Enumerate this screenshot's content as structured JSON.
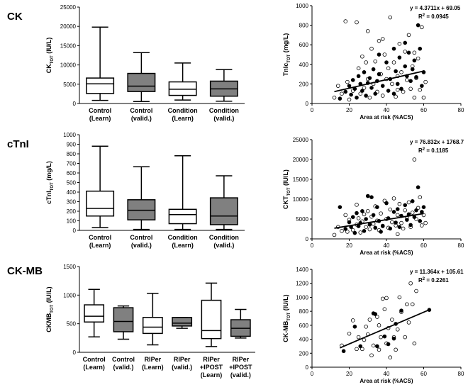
{
  "row_labels": [
    "CK",
    "cTnI",
    "CK-MB"
  ],
  "chart_data": [
    {
      "type": "box",
      "ylabel": "CK",
      "ylabel_sub": "TOT",
      "ylabel_unit": " (IU/L)",
      "ylim": [
        0,
        25000
      ],
      "yticks": [
        0,
        5000,
        10000,
        15000,
        20000,
        25000
      ],
      "categories": [
        [
          "Control",
          "(Learn)"
        ],
        [
          "Control",
          "(valid.)"
        ],
        [
          "Condition",
          "(Learn)"
        ],
        [
          "Condition",
          "(valid.)"
        ]
      ],
      "fills": [
        "#ffffff",
        "#808080",
        "#ffffff",
        "#808080"
      ],
      "boxes": [
        {
          "min": 800,
          "q1": 2600,
          "median": 5100,
          "q3": 6600,
          "max": 19800
        },
        {
          "min": 500,
          "q1": 3100,
          "median": 4500,
          "q3": 7800,
          "max": 13200
        },
        {
          "min": 900,
          "q1": 2100,
          "median": 3700,
          "q3": 5600,
          "max": 10500
        },
        {
          "min": 600,
          "q1": 1900,
          "median": 3800,
          "q3": 5800,
          "max": 8800
        }
      ]
    },
    {
      "type": "scatter",
      "ylabel": "TnIc",
      "ylabel_sub": "TOT",
      "ylabel_unit": " (mg/L)",
      "xlabel": "Area at risk (%ACS)",
      "xlim": [
        0,
        80
      ],
      "xticks": [
        0,
        20,
        40,
        60,
        80
      ],
      "ylim": [
        0,
        1000
      ],
      "yticks": [
        0,
        200,
        400,
        600,
        800,
        1000
      ],
      "equation": "y = 4.3711x + 69.05",
      "r2_label": "R",
      "r2_value": " = 0.0945",
      "fit": {
        "slope": 4.3711,
        "intercept": 69.05,
        "x_range": [
          12,
          60
        ]
      },
      "filled": [
        [
          15,
          50
        ],
        [
          18,
          120
        ],
        [
          20,
          180
        ],
        [
          21,
          90
        ],
        [
          22,
          240
        ],
        [
          23,
          150
        ],
        [
          24,
          60
        ],
        [
          25,
          280
        ],
        [
          26,
          200
        ],
        [
          27,
          130
        ],
        [
          28,
          320
        ],
        [
          29,
          80
        ],
        [
          30,
          210
        ],
        [
          31,
          260
        ],
        [
          32,
          160
        ],
        [
          33,
          350
        ],
        [
          34,
          100
        ],
        [
          35,
          230
        ],
        [
          36,
          300
        ],
        [
          38,
          180
        ],
        [
          40,
          420
        ],
        [
          41,
          130
        ],
        [
          42,
          250
        ],
        [
          44,
          560
        ],
        [
          45,
          330
        ],
        [
          46,
          200
        ],
        [
          47,
          470
        ],
        [
          48,
          150
        ],
        [
          50,
          380
        ],
        [
          51,
          280
        ],
        [
          52,
          520
        ],
        [
          53,
          230
        ],
        [
          54,
          350
        ],
        [
          55,
          440
        ],
        [
          56,
          270
        ],
        [
          57,
          800
        ],
        [
          58,
          560
        ],
        [
          59,
          180
        ],
        [
          60,
          320
        ],
        [
          36,
          500
        ],
        [
          44,
          100
        ],
        [
          50,
          620
        ]
      ],
      "open": [
        [
          12,
          60
        ],
        [
          14,
          180
        ],
        [
          16,
          100
        ],
        [
          18,
          840
        ],
        [
          19,
          220
        ],
        [
          20,
          40
        ],
        [
          22,
          130
        ],
        [
          24,
          830
        ],
        [
          25,
          360
        ],
        [
          26,
          100
        ],
        [
          27,
          480
        ],
        [
          28,
          160
        ],
        [
          29,
          420
        ],
        [
          30,
          250
        ],
        [
          31,
          60
        ],
        [
          32,
          560
        ],
        [
          33,
          200
        ],
        [
          34,
          430
        ],
        [
          35,
          120
        ],
        [
          36,
          640
        ],
        [
          37,
          300
        ],
        [
          38,
          80
        ],
        [
          39,
          500
        ],
        [
          40,
          250
        ],
        [
          41,
          360
        ],
        [
          42,
          880
        ],
        [
          43,
          200
        ],
        [
          44,
          420
        ],
        [
          45,
          70
        ],
        [
          46,
          280
        ],
        [
          47,
          610
        ],
        [
          48,
          320
        ],
        [
          49,
          120
        ],
        [
          50,
          530
        ],
        [
          51,
          240
        ],
        [
          52,
          700
        ],
        [
          53,
          150
        ],
        [
          54,
          380
        ],
        [
          55,
          60
        ],
        [
          56,
          260
        ],
        [
          57,
          460
        ],
        [
          58,
          140
        ],
        [
          59,
          780
        ],
        [
          60,
          60
        ],
        [
          61,
          220
        ],
        [
          30,
          740
        ],
        [
          38,
          660
        ],
        [
          46,
          140
        ],
        [
          55,
          520
        ]
      ]
    },
    {
      "type": "box",
      "ylabel": "cTnI",
      "ylabel_sub": "TOT",
      "ylabel_unit": " (mg/L)",
      "ylim": [
        0,
        1000
      ],
      "yticks": [
        0,
        100,
        200,
        300,
        400,
        500,
        600,
        700,
        800,
        900,
        1000
      ],
      "categories": [
        [
          "Control",
          "(Learn)"
        ],
        [
          "Control",
          "(valid.)"
        ],
        [
          "Condition",
          "(Learn)"
        ],
        [
          "Condition",
          "(valid.)"
        ]
      ],
      "fills": [
        "#ffffff",
        "#808080",
        "#ffffff",
        "#808080"
      ],
      "boxes": [
        {
          "min": 30,
          "q1": 150,
          "median": 230,
          "q3": 410,
          "max": 880
        },
        {
          "min": 10,
          "q1": 110,
          "median": 210,
          "q3": 320,
          "max": 665
        },
        {
          "min": 10,
          "q1": 70,
          "median": 165,
          "q3": 220,
          "max": 780
        },
        {
          "min": 10,
          "q1": 60,
          "median": 150,
          "q3": 340,
          "max": 570
        }
      ]
    },
    {
      "type": "scatter",
      "ylabel": "CKT",
      "ylabel_sub": "TOT",
      "ylabel_unit": " (IU/L)",
      "xlabel": "Area at risk (%ACS)",
      "xlim": [
        0,
        80
      ],
      "xticks": [
        0,
        20,
        40,
        60,
        80
      ],
      "ylim": [
        0,
        25000
      ],
      "yticks": [
        0,
        5000,
        10000,
        15000,
        20000,
        25000
      ],
      "equation": "y = 76.832x + 1768.7",
      "r2_label": "R",
      "r2_value": " = 0.1185",
      "fit": {
        "slope": 76.832,
        "intercept": 1768.7,
        "x_range": [
          12,
          60
        ]
      },
      "filled": [
        [
          15,
          8000
        ],
        [
          18,
          2500
        ],
        [
          20,
          4200
        ],
        [
          21,
          3000
        ],
        [
          22,
          5500
        ],
        [
          23,
          1500
        ],
        [
          24,
          6500
        ],
        [
          25,
          3200
        ],
        [
          26,
          4000
        ],
        [
          27,
          7000
        ],
        [
          28,
          2000
        ],
        [
          29,
          5000
        ],
        [
          30,
          10800
        ],
        [
          31,
          3600
        ],
        [
          32,
          10500
        ],
        [
          33,
          6000
        ],
        [
          34,
          2800
        ],
        [
          35,
          8000
        ],
        [
          36,
          4500
        ],
        [
          38,
          3300
        ],
        [
          40,
          9000
        ],
        [
          41,
          5200
        ],
        [
          42,
          2600
        ],
        [
          44,
          6800
        ],
        [
          45,
          4100
        ],
        [
          46,
          7500
        ],
        [
          47,
          3000
        ],
        [
          48,
          5800
        ],
        [
          50,
          8500
        ],
        [
          51,
          4800
        ],
        [
          52,
          6200
        ],
        [
          53,
          3500
        ],
        [
          54,
          9500
        ],
        [
          55,
          5500
        ],
        [
          56,
          7200
        ],
        [
          57,
          13000
        ],
        [
          58,
          4500
        ],
        [
          59,
          6800
        ],
        [
          60,
          8000
        ],
        [
          37,
          1800
        ]
      ],
      "open": [
        [
          12,
          1000
        ],
        [
          14,
          3000
        ],
        [
          16,
          2000
        ],
        [
          18,
          6000
        ],
        [
          19,
          1800
        ],
        [
          20,
          4800
        ],
        [
          22,
          2200
        ],
        [
          24,
          3600
        ],
        [
          25,
          5200
        ],
        [
          26,
          1600
        ],
        [
          27,
          4400
        ],
        [
          28,
          6200
        ],
        [
          29,
          3000
        ],
        [
          30,
          7000
        ],
        [
          31,
          2400
        ],
        [
          32,
          5600
        ],
        [
          33,
          3800
        ],
        [
          34,
          8200
        ],
        [
          35,
          4600
        ],
        [
          36,
          2200
        ],
        [
          37,
          6400
        ],
        [
          38,
          3200
        ],
        [
          39,
          9600
        ],
        [
          40,
          5000
        ],
        [
          41,
          2800
        ],
        [
          42,
          7400
        ],
        [
          43,
          4200
        ],
        [
          44,
          10200
        ],
        [
          45,
          3400
        ],
        [
          46,
          6000
        ],
        [
          47,
          8800
        ],
        [
          48,
          4000
        ],
        [
          49,
          2600
        ],
        [
          50,
          7200
        ],
        [
          51,
          5400
        ],
        [
          52,
          9200
        ],
        [
          53,
          3000
        ],
        [
          54,
          6600
        ],
        [
          55,
          20000
        ],
        [
          56,
          5000
        ],
        [
          57,
          7800
        ],
        [
          58,
          10500
        ],
        [
          59,
          3400
        ],
        [
          60,
          6000
        ],
        [
          61,
          4000
        ],
        [
          24,
          8600
        ],
        [
          46,
          1200
        ]
      ]
    },
    {
      "type": "box",
      "ylabel": "CKMB",
      "ylabel_sub": "TOT",
      "ylabel_unit": " (IU/L)",
      "ylim": [
        0,
        1500
      ],
      "yticks": [
        0,
        500,
        1000,
        1500
      ],
      "categories": [
        [
          "Control",
          "(Learn)"
        ],
        [
          "Control",
          "(valid.)"
        ],
        [
          "RIPer",
          "(Learn)"
        ],
        [
          "RIPer",
          "(valid.)"
        ],
        [
          "RIPer",
          "+IPOST",
          "(Learn)"
        ],
        [
          "RIPer",
          "+IPOST",
          "(valid.)"
        ]
      ],
      "fills": [
        "#ffffff",
        "#808080",
        "#ffffff",
        "#808080",
        "#ffffff",
        "#808080"
      ],
      "boxes": [
        {
          "min": 270,
          "q1": 530,
          "median": 630,
          "q3": 830,
          "max": 1100
        },
        {
          "min": 230,
          "q1": 360,
          "median": 540,
          "q3": 780,
          "max": 810
        },
        {
          "min": 130,
          "q1": 330,
          "median": 440,
          "q3": 610,
          "max": 1030
        },
        {
          "min": 420,
          "q1": 460,
          "median": 510,
          "q3": 610,
          "max": 610
        },
        {
          "min": 100,
          "q1": 240,
          "median": 380,
          "q3": 910,
          "max": 1210
        },
        {
          "min": 250,
          "q1": 280,
          "median": 420,
          "q3": 570,
          "max": 750
        }
      ]
    },
    {
      "type": "scatter",
      "ylabel": "CK-MB",
      "ylabel_sub": "TOT",
      "ylabel_unit": " (IU/L)",
      "xlabel": "Area at risk (%ACS)",
      "xlim": [
        0,
        80
      ],
      "xticks": [
        0,
        20,
        40,
        60,
        80
      ],
      "ylim": [
        0,
        1400
      ],
      "yticks": [
        0,
        200,
        400,
        600,
        800,
        1000,
        1200,
        1400
      ],
      "equation": "y = 11.364x + 105.61",
      "r2_label": "R",
      "r2_value": " = 0.2261",
      "fit": {
        "slope": 11.364,
        "intercept": 105.61,
        "x_range": [
          15,
          63
        ]
      },
      "filled": [
        [
          17,
          230
        ],
        [
          23,
          580
        ],
        [
          26,
          300
        ],
        [
          33,
          770
        ],
        [
          34,
          760
        ],
        [
          35,
          300
        ],
        [
          39,
          440
        ],
        [
          41,
          330
        ],
        [
          44,
          410
        ],
        [
          45,
          620
        ],
        [
          48,
          810
        ],
        [
          63,
          820
        ]
      ],
      "open": [
        [
          16,
          310
        ],
        [
          20,
          480
        ],
        [
          22,
          670
        ],
        [
          24,
          260
        ],
        [
          25,
          430
        ],
        [
          27,
          260
        ],
        [
          28,
          390
        ],
        [
          29,
          580
        ],
        [
          30,
          470
        ],
        [
          31,
          680
        ],
        [
          32,
          170
        ],
        [
          33,
          310
        ],
        [
          35,
          720
        ],
        [
          36,
          250
        ],
        [
          37,
          430
        ],
        [
          38,
          980
        ],
        [
          39,
          830
        ],
        [
          40,
          340
        ],
        [
          41,
          560
        ],
        [
          42,
          140
        ],
        [
          43,
          680
        ],
        [
          44,
          430
        ],
        [
          45,
          250
        ],
        [
          46,
          540
        ],
        [
          47,
          1000
        ],
        [
          48,
          790
        ],
        [
          50,
          430
        ],
        [
          51,
          900
        ],
        [
          52,
          640
        ],
        [
          53,
          1200
        ],
        [
          54,
          900
        ],
        [
          55,
          340
        ],
        [
          56,
          1090
        ],
        [
          40,
          990
        ],
        [
          36,
          600
        ]
      ]
    }
  ]
}
